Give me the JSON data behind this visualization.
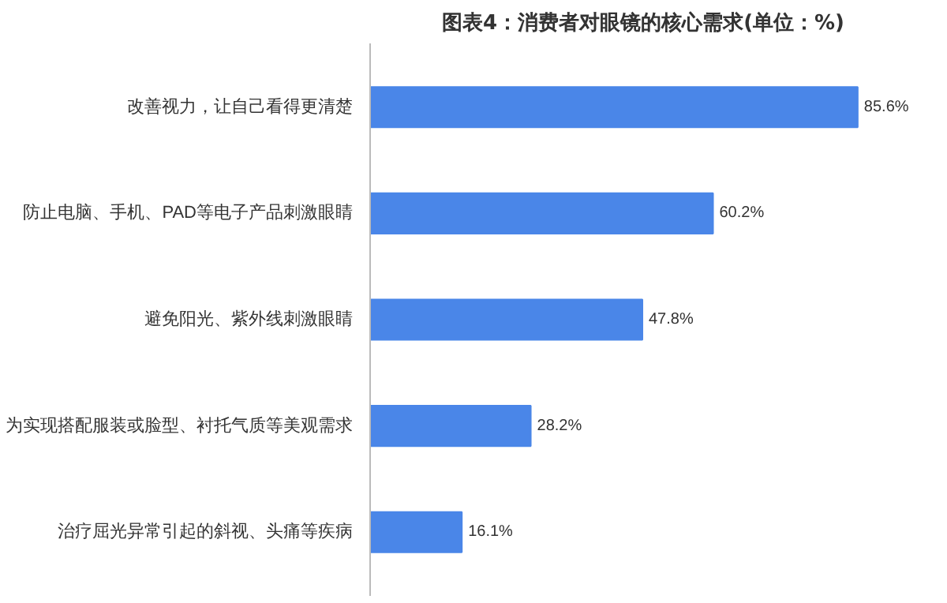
{
  "chart_data": {
    "type": "bar",
    "orientation": "horizontal",
    "title": "图表4：消费者对眼镜的核心需求(单位：%)",
    "categories": [
      "改善视力，让自己看得更清楚",
      "防止电脑、手机、PAD等电子产品刺激眼睛",
      "避免阳光、紫外线刺激眼睛",
      "为实现搭配服装或脸型、衬托气质等美观需求",
      "治疗屈光异常引起的斜视、头痛等疾病"
    ],
    "values": [
      85.6,
      60.2,
      47.8,
      28.2,
      16.1
    ],
    "value_labels": [
      "85.6%",
      "60.2%",
      "47.8%",
      "28.2%",
      "16.1%"
    ],
    "color": "#4a86e8",
    "grid": false,
    "tick_labels": "y"
  }
}
